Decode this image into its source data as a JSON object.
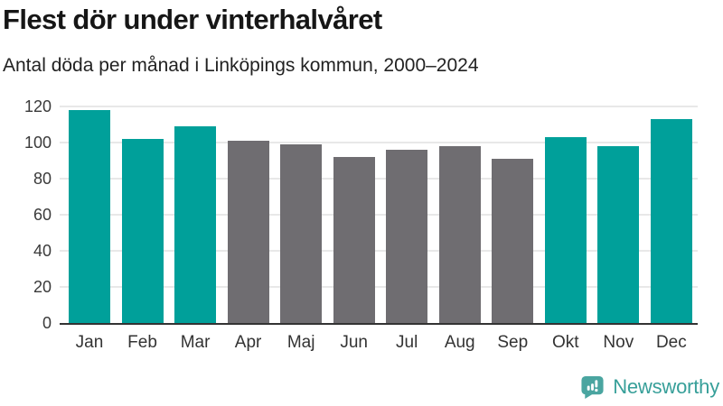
{
  "title": "Flest dör under vinterhalvåret",
  "subtitle": "Antal döda per månad i Linköpings kommun, 2000–2024",
  "chart_data": {
    "type": "bar",
    "title": "Flest dör under vinterhalvåret",
    "subtitle": "Antal döda per månad i Linköpings kommun, 2000–2024",
    "categories": [
      "Jan",
      "Feb",
      "Mar",
      "Apr",
      "Maj",
      "Jun",
      "Jul",
      "Aug",
      "Sep",
      "Okt",
      "Nov",
      "Dec"
    ],
    "values": [
      118,
      102,
      109,
      101,
      99,
      92,
      96,
      98,
      91,
      103,
      98,
      113
    ],
    "bar_roles": [
      "highlight",
      "highlight",
      "highlight",
      "default",
      "default",
      "default",
      "default",
      "default",
      "default",
      "highlight",
      "highlight",
      "highlight"
    ],
    "colors": {
      "highlight": "#00a09a",
      "default": "#6f6d71"
    },
    "xlabel": "",
    "ylabel": "",
    "ylim": [
      0,
      120
    ],
    "yticks": [
      0,
      20,
      40,
      60,
      80,
      100,
      120
    ],
    "grid": true,
    "legend": false
  },
  "branding": {
    "logo_icon": "bar-chart-speech-bubble-icon",
    "logo_text": "Newsworthy",
    "logo_color": "#4aa5a0"
  }
}
